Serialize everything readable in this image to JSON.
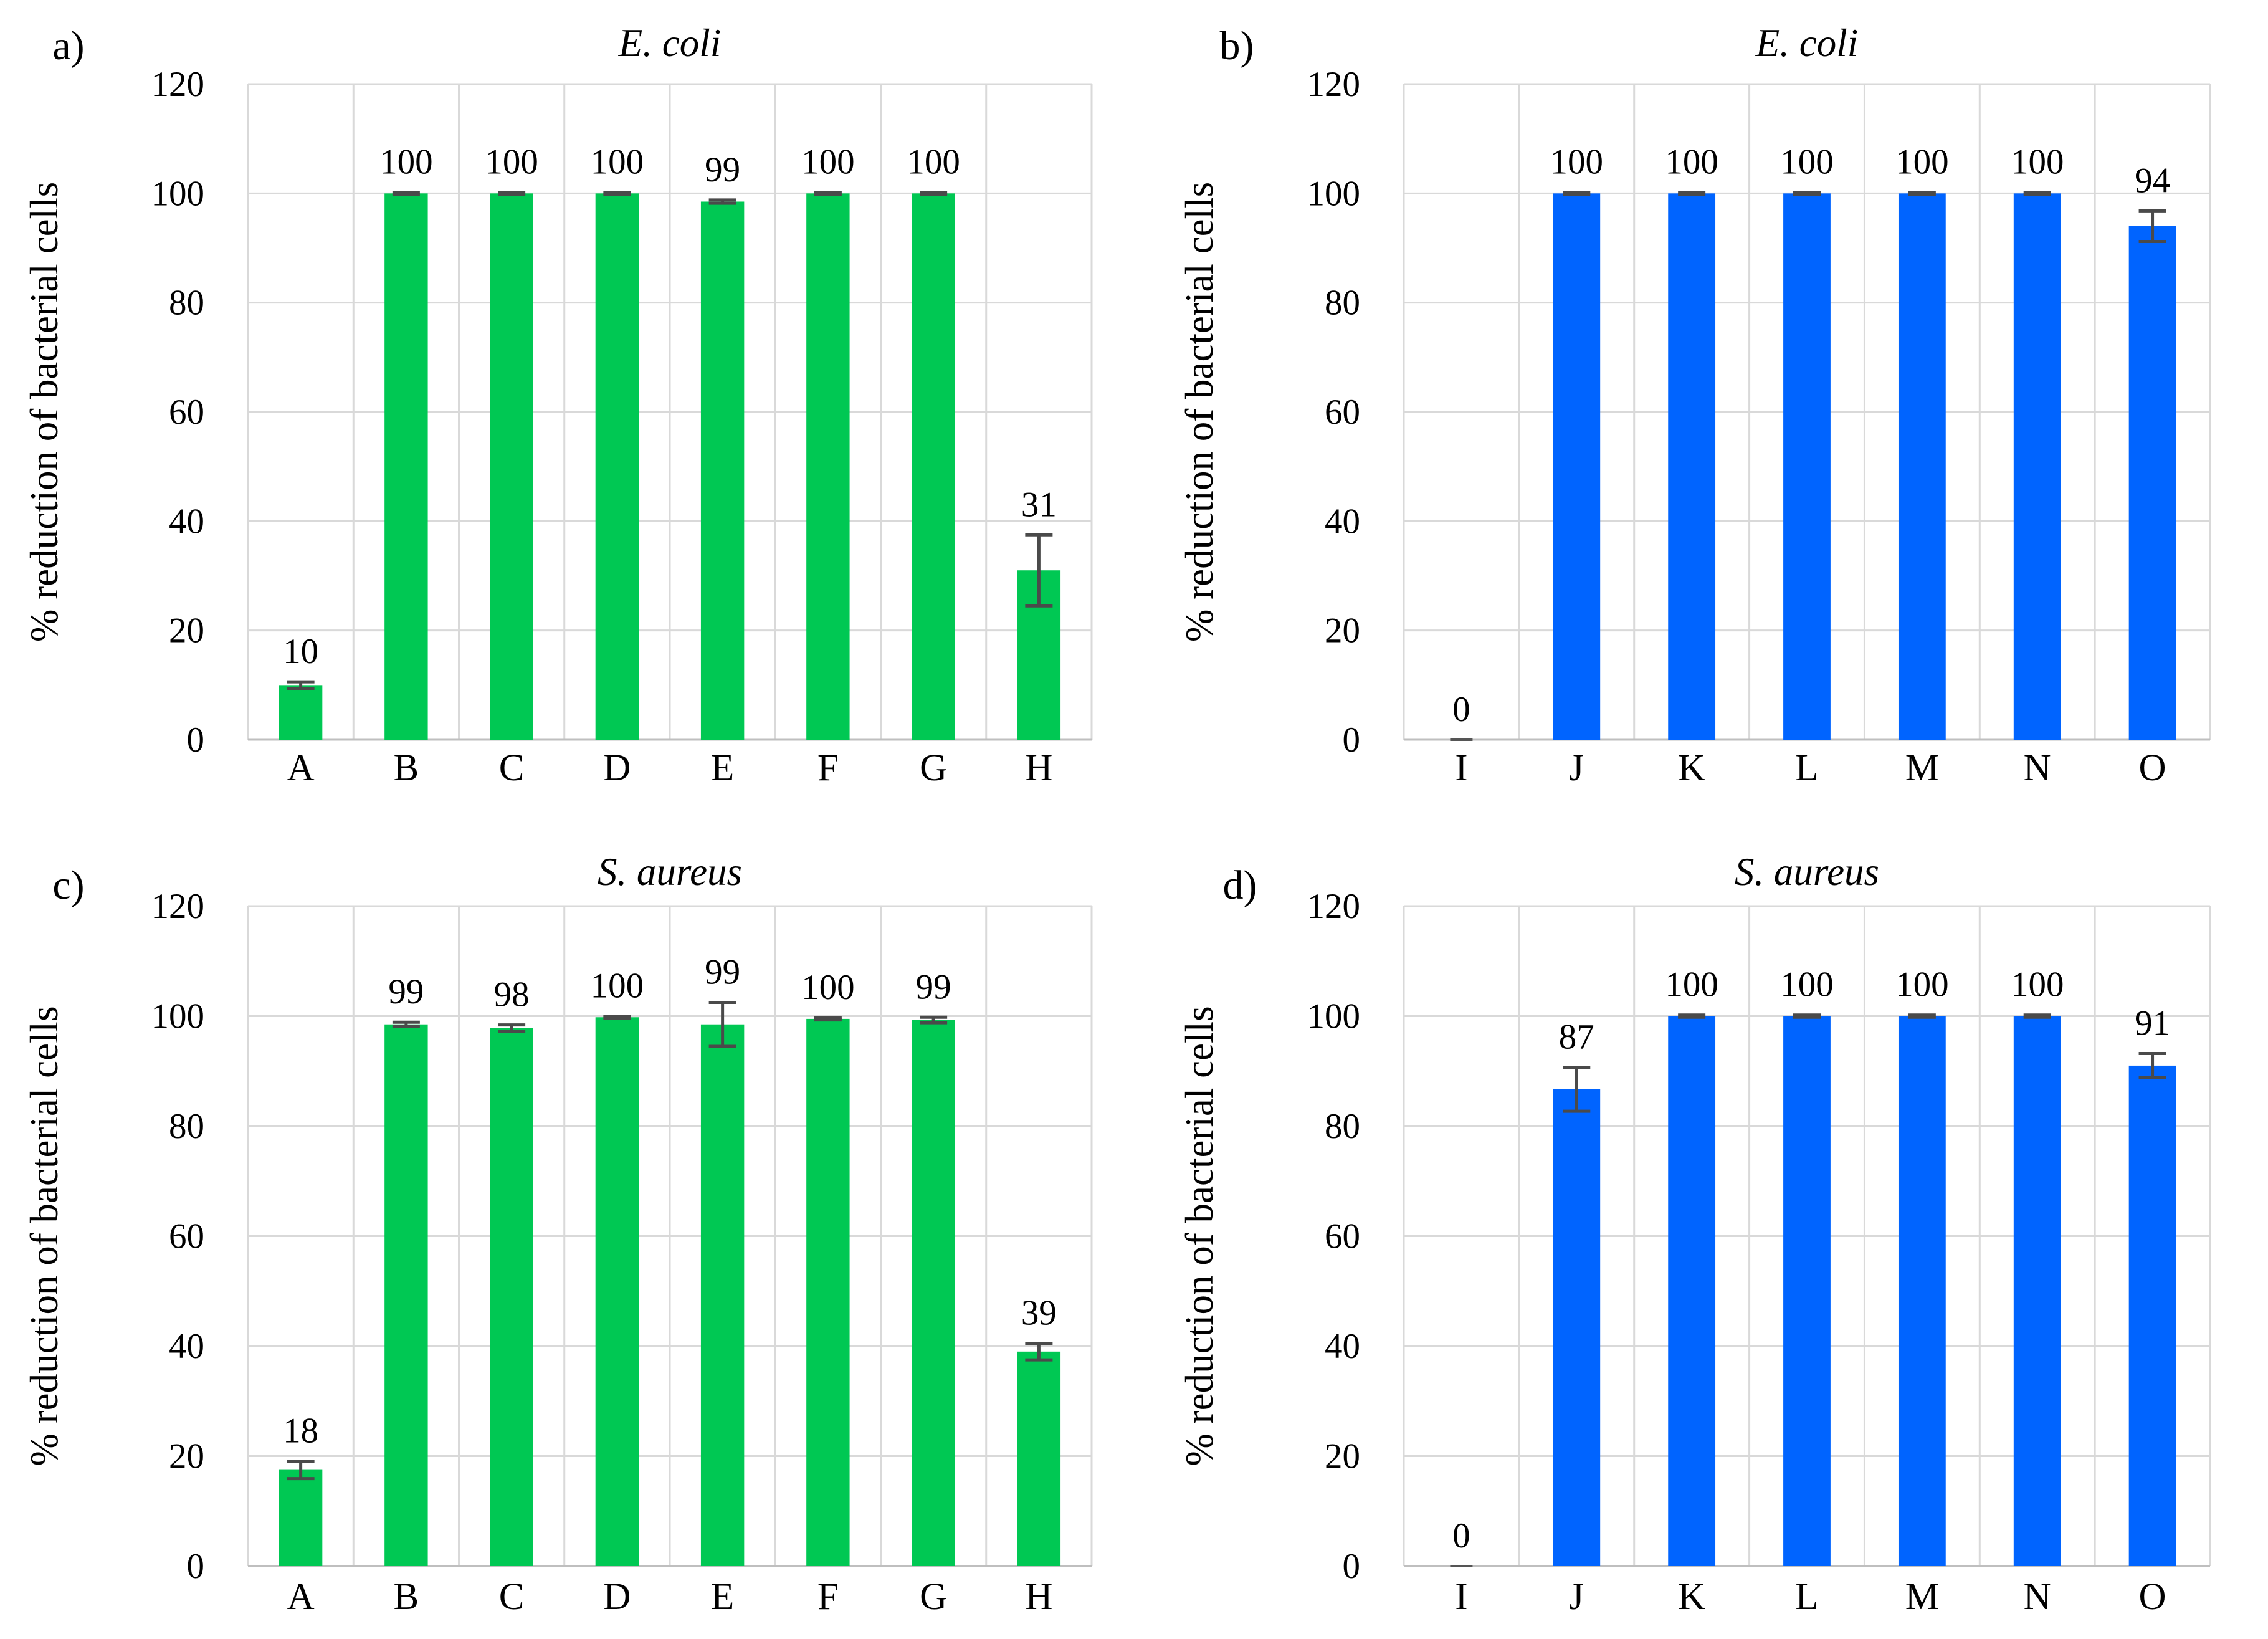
{
  "chart_data": [
    {
      "panel": "a)",
      "type": "bar",
      "title": "E. coli",
      "ylabel": "% reduction of bacterial cells",
      "ylim": [
        0,
        120
      ],
      "yticks": [
        "0",
        "20",
        "40",
        "60",
        "80",
        "100",
        "120"
      ],
      "grid": true,
      "color": "#00c853",
      "categories": [
        "A",
        "B",
        "C",
        "D",
        "E",
        "F",
        "G",
        "H"
      ],
      "values": [
        10,
        100,
        100,
        100,
        98.5,
        100,
        100,
        31
      ],
      "errors": [
        0.6,
        0.2,
        0.2,
        0.2,
        0.3,
        0.2,
        0.2,
        6.5
      ],
      "labels": [
        "10",
        "100",
        "100",
        "100",
        "99",
        "100",
        "100",
        "31"
      ]
    },
    {
      "panel": "b)",
      "type": "bar",
      "title": "E. coli",
      "ylabel": "% reduction of bacterial cells",
      "ylim": [
        0,
        120
      ],
      "yticks": [
        "0",
        "20",
        "40",
        "60",
        "80",
        "100",
        "120"
      ],
      "grid": true,
      "color": "#0064ff",
      "categories": [
        "I",
        "J",
        "K",
        "L",
        "M",
        "N",
        "O"
      ],
      "values": [
        0,
        100,
        100,
        100,
        100,
        100,
        94
      ],
      "errors": [
        0,
        0.2,
        0.2,
        0.2,
        0.2,
        0.2,
        2.8
      ],
      "labels": [
        "0",
        "100",
        "100",
        "100",
        "100",
        "100",
        "94"
      ]
    },
    {
      "panel": "c)",
      "type": "bar",
      "title": "S. aureus",
      "ylabel": "% reduction of bacterial cells",
      "ylim": [
        0,
        120
      ],
      "yticks": [
        "0",
        "20",
        "40",
        "60",
        "80",
        "100",
        "120"
      ],
      "grid": true,
      "color": "#00c853",
      "categories": [
        "A",
        "B",
        "C",
        "D",
        "E",
        "F",
        "G",
        "H"
      ],
      "values": [
        17.5,
        98.5,
        97.8,
        99.8,
        98.5,
        99.5,
        99.3,
        39
      ],
      "errors": [
        1.6,
        0.4,
        0.6,
        0.2,
        4,
        0.2,
        0.5,
        1.5
      ],
      "labels": [
        "18",
        "99",
        "98",
        "100",
        "99",
        "100",
        "99",
        "39"
      ]
    },
    {
      "panel": "d)",
      "type": "bar",
      "title": "S. aureus",
      "ylabel": "% reduction of bacterial cells",
      "ylim": [
        0,
        120
      ],
      "yticks": [
        "0",
        "20",
        "40",
        "60",
        "80",
        "100",
        "120"
      ],
      "grid": true,
      "color": "#0064ff",
      "categories": [
        "I",
        "J",
        "K",
        "L",
        "M",
        "N",
        "O"
      ],
      "values": [
        0,
        86.7,
        100,
        100,
        100,
        100,
        91
      ],
      "errors": [
        0,
        4,
        0.2,
        0.2,
        0.2,
        0.2,
        2.2
      ],
      "labels": [
        "0",
        "87",
        "100",
        "100",
        "100",
        "100",
        "91"
      ]
    }
  ]
}
